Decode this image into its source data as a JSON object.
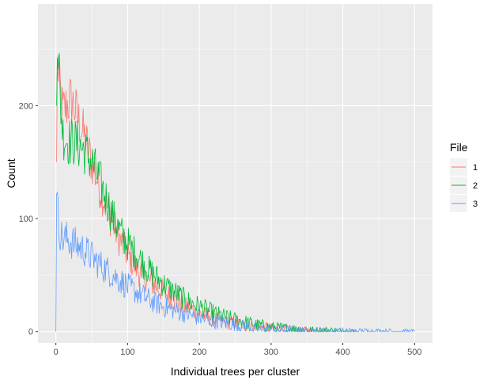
{
  "chart_data": {
    "type": "line",
    "xlabel": "Individual trees per cluster",
    "ylabel": "Count",
    "xlim": [
      -25,
      525
    ],
    "ylim": [
      -10,
      290
    ],
    "x_ticks": [
      0,
      100,
      200,
      300,
      400,
      500
    ],
    "x_tick_labels": [
      "0",
      "100",
      "200",
      "300",
      "400",
      "500"
    ],
    "y_ticks": [
      0,
      100,
      200
    ],
    "y_tick_labels": [
      "0",
      "100",
      "200"
    ],
    "grid": true,
    "panel_background": "#ebebeb",
    "legend": {
      "title": "File",
      "position": "right"
    },
    "series": [
      {
        "name": "1",
        "color": "#F8766D",
        "x": [
          1,
          2,
          4,
          6,
          8,
          10,
          15,
          20,
          25,
          30,
          40,
          50,
          60,
          70,
          80,
          90,
          100,
          110,
          120,
          130,
          140,
          150,
          160,
          170,
          180,
          190,
          200,
          220,
          240,
          260,
          280,
          300,
          320,
          340,
          360,
          380
        ],
        "y": [
          150,
          235,
          228,
          215,
          200,
          195,
          200,
          205,
          200,
          190,
          172,
          150,
          130,
          112,
          95,
          80,
          68,
          58,
          50,
          45,
          40,
          35,
          30,
          26,
          22,
          19,
          16,
          11,
          8,
          6,
          4,
          3,
          2,
          1,
          0.5,
          0
        ]
      },
      {
        "name": "2",
        "color": "#00BA38",
        "x": [
          1,
          2,
          4,
          6,
          8,
          10,
          15,
          20,
          25,
          30,
          40,
          50,
          60,
          70,
          80,
          90,
          100,
          110,
          120,
          130,
          140,
          150,
          160,
          170,
          180,
          190,
          200,
          220,
          240,
          260,
          280,
          300,
          320,
          340,
          360,
          380,
          400,
          420
        ],
        "y": [
          200,
          262,
          235,
          205,
          190,
          175,
          170,
          168,
          168,
          166,
          160,
          150,
          135,
          118,
          100,
          88,
          78,
          70,
          62,
          54,
          48,
          42,
          37,
          33,
          28,
          25,
          22,
          16,
          12,
          9,
          6,
          4,
          3,
          2,
          1,
          1,
          0.5,
          0
        ]
      },
      {
        "name": "3",
        "color": "#619CFF",
        "x": [
          0,
          1,
          2,
          4,
          6,
          8,
          10,
          15,
          20,
          25,
          30,
          40,
          50,
          60,
          70,
          80,
          90,
          100,
          110,
          120,
          130,
          140,
          150,
          160,
          170,
          180,
          190,
          200,
          220,
          240,
          260,
          280,
          300,
          320,
          340,
          360,
          400,
          450,
          500
        ],
        "y": [
          0,
          138,
          112,
          95,
          88,
          84,
          82,
          82,
          80,
          78,
          76,
          72,
          66,
          60,
          55,
          50,
          45,
          40,
          36,
          32,
          28,
          25,
          22,
          20,
          18,
          16,
          14,
          12,
          9,
          7,
          5,
          3,
          2,
          1.5,
          1,
          0.5,
          0.3,
          0.2,
          0
        ]
      }
    ]
  }
}
